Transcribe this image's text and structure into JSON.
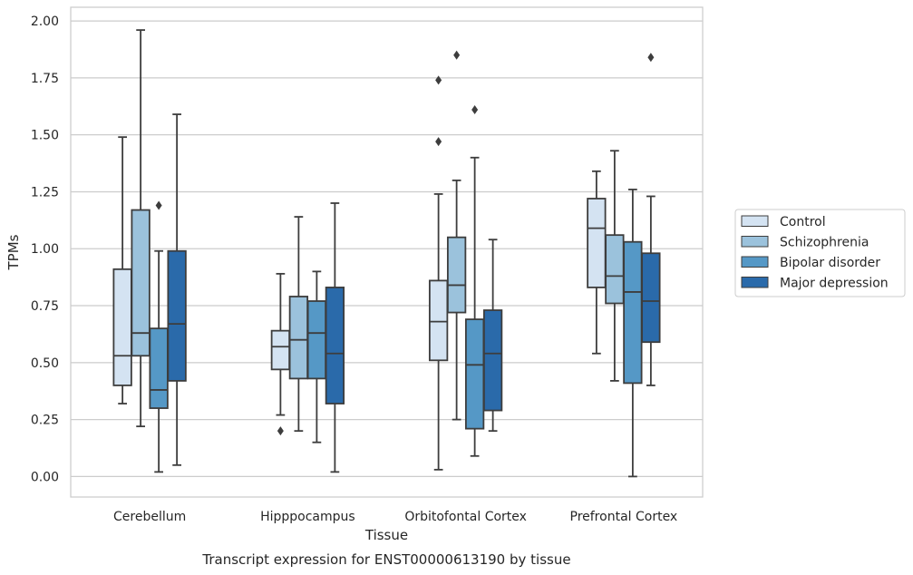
{
  "chart_data": {
    "type": "box",
    "caption": "Transcript expression for ENST00000613190 by tissue",
    "xlabel": "Tissue",
    "ylabel": "TPMs",
    "ylim": [
      -0.09,
      2.06
    ],
    "yticks": [
      "0.00",
      "0.25",
      "0.50",
      "0.75",
      "1.00",
      "1.25",
      "1.50",
      "1.75",
      "2.00"
    ],
    "grid": true,
    "legend_position": "right",
    "categories": [
      "Cerebellum",
      "Hipppocampus",
      "Orbitofontal Cortex",
      "Prefrontal Cortex"
    ],
    "series": [
      {
        "name": "Control",
        "color": "#d4e3f2",
        "boxes": [
          {
            "whislo": 0.32,
            "q1": 0.4,
            "med": 0.53,
            "q3": 0.91,
            "whishi": 1.49,
            "fliers": []
          },
          {
            "whislo": 0.27,
            "q1": 0.47,
            "med": 0.57,
            "q3": 0.64,
            "whishi": 0.89,
            "fliers": [
              0.2
            ]
          },
          {
            "whislo": 0.03,
            "q1": 0.51,
            "med": 0.68,
            "q3": 0.86,
            "whishi": 1.24,
            "fliers": [
              1.47,
              1.74
            ]
          },
          {
            "whislo": 0.54,
            "q1": 0.83,
            "med": 1.09,
            "q3": 1.22,
            "whishi": 1.34,
            "fliers": []
          }
        ]
      },
      {
        "name": "Schizophrenia",
        "color": "#9bc2dc",
        "boxes": [
          {
            "whislo": 0.22,
            "q1": 0.53,
            "med": 0.63,
            "q3": 1.17,
            "whishi": 1.96,
            "fliers": []
          },
          {
            "whislo": 0.2,
            "q1": 0.43,
            "med": 0.6,
            "q3": 0.79,
            "whishi": 1.14,
            "fliers": []
          },
          {
            "whislo": 0.25,
            "q1": 0.72,
            "med": 0.84,
            "q3": 1.05,
            "whishi": 1.3,
            "fliers": [
              1.85
            ]
          },
          {
            "whislo": 0.42,
            "q1": 0.76,
            "med": 0.88,
            "q3": 1.06,
            "whishi": 1.43,
            "fliers": []
          }
        ]
      },
      {
        "name": "Bipolar disorder",
        "color": "#5598c6",
        "boxes": [
          {
            "whislo": 0.02,
            "q1": 0.3,
            "med": 0.38,
            "q3": 0.65,
            "whishi": 0.99,
            "fliers": [
              1.19
            ]
          },
          {
            "whislo": 0.15,
            "q1": 0.43,
            "med": 0.63,
            "q3": 0.77,
            "whishi": 0.9,
            "fliers": []
          },
          {
            "whislo": 0.09,
            "q1": 0.21,
            "med": 0.49,
            "q3": 0.69,
            "whishi": 1.4,
            "fliers": [
              1.61
            ]
          },
          {
            "whislo": 0.0,
            "q1": 0.41,
            "med": 0.81,
            "q3": 1.03,
            "whishi": 1.26,
            "fliers": []
          }
        ]
      },
      {
        "name": "Major depression",
        "color": "#2a6aaa",
        "boxes": [
          {
            "whislo": 0.05,
            "q1": 0.42,
            "med": 0.67,
            "q3": 0.99,
            "whishi": 1.59,
            "fliers": []
          },
          {
            "whislo": 0.02,
            "q1": 0.32,
            "med": 0.54,
            "q3": 0.83,
            "whishi": 1.2,
            "fliers": []
          },
          {
            "whislo": 0.2,
            "q1": 0.29,
            "med": 0.54,
            "q3": 0.73,
            "whishi": 1.04,
            "fliers": []
          },
          {
            "whislo": 0.4,
            "q1": 0.59,
            "med": 0.77,
            "q3": 0.98,
            "whishi": 1.23,
            "fliers": [
              1.84
            ]
          }
        ]
      }
    ]
  }
}
